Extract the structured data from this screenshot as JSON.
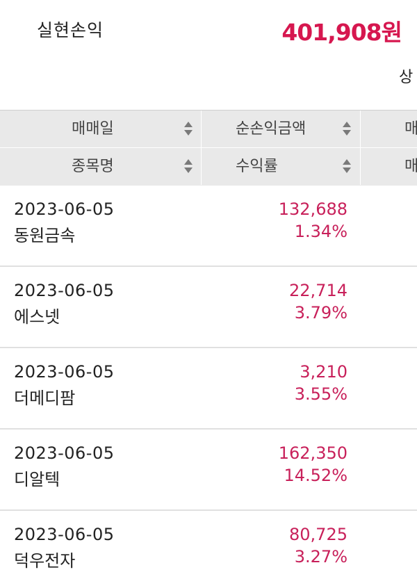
{
  "summary": {
    "label": "실현손익",
    "value": "401,908원"
  },
  "detail_link": "상",
  "table": {
    "header_row1": [
      "매매일",
      "순손익금액",
      "매"
    ],
    "header_row2": [
      "종목명",
      "수익률",
      "매"
    ],
    "rows": [
      {
        "date": "2023-06-05",
        "name": "동원금속",
        "amount": "132,688",
        "rate": "1.34%"
      },
      {
        "date": "2023-06-05",
        "name": "에스넷",
        "amount": "22,714",
        "rate": "3.79%"
      },
      {
        "date": "2023-06-05",
        "name": "더메디팜",
        "amount": "3,210",
        "rate": "3.55%"
      },
      {
        "date": "2023-06-05",
        "name": "디알텍",
        "amount": "162,350",
        "rate": "14.52%"
      },
      {
        "date": "2023-06-05",
        "name": "덕우전자",
        "amount": "80,725",
        "rate": "3.27%"
      }
    ]
  },
  "colors": {
    "accent": "#d6174f",
    "profit": "#c8205a",
    "header_bg": "#e9e9e9"
  }
}
